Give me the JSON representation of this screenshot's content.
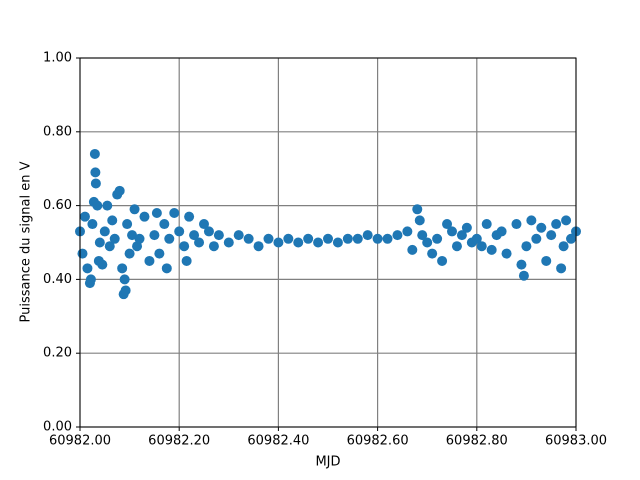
{
  "chart_data": {
    "type": "scatter",
    "xlabel": "MJD",
    "ylabel": "Puissance du signal en V",
    "xlim": [
      60982.0,
      60983.0
    ],
    "xticks": [
      {
        "value": 60982.0,
        "label": "60982.00"
      },
      {
        "value": 60982.2,
        "label": "60982.20"
      },
      {
        "value": 60982.4,
        "label": "60982.40"
      },
      {
        "value": 60982.6,
        "label": "60982.60"
      },
      {
        "value": 60982.8,
        "label": "60982.80"
      },
      {
        "value": 60983.0,
        "label": "60983.00"
      }
    ],
    "ylim": [
      0,
      1
    ],
    "yticks": [
      {
        "value": 0,
        "label": "0.00"
      },
      {
        "value": 0.2,
        "label": "0.20"
      },
      {
        "value": 0.4,
        "label": "0.40"
      },
      {
        "value": 0.6,
        "label": "0.60"
      },
      {
        "value": 0.8,
        "label": "0.80"
      },
      {
        "value": 1,
        "label": "1.00"
      }
    ],
    "grid": true,
    "color": "#1f77b4",
    "x": [
      60982.0,
      60982.005,
      60982.01,
      60982.015,
      60982.02,
      60982.022,
      60982.025,
      60982.028,
      60982.03,
      60982.031,
      60982.032,
      60982.035,
      60982.038,
      60982.04,
      60982.045,
      60982.05,
      60982.055,
      60982.06,
      60982.065,
      60982.07,
      60982.075,
      60982.08,
      60982.085,
      60982.088,
      60982.09,
      60982.092,
      60982.095,
      60982.1,
      60982.105,
      60982.11,
      60982.115,
      60982.12,
      60982.13,
      60982.14,
      60982.15,
      60982.155,
      60982.16,
      60982.17,
      60982.175,
      60982.18,
      60982.19,
      60982.2,
      60982.21,
      60982.215,
      60982.22,
      60982.23,
      60982.24,
      60982.25,
      60982.26,
      60982.27,
      60982.28,
      60982.3,
      60982.32,
      60982.34,
      60982.36,
      60982.38,
      60982.4,
      60982.42,
      60982.44,
      60982.46,
      60982.48,
      60982.5,
      60982.52,
      60982.54,
      60982.56,
      60982.58,
      60982.6,
      60982.62,
      60982.64,
      60982.66,
      60982.67,
      60982.68,
      60982.685,
      60982.69,
      60982.7,
      60982.71,
      60982.72,
      60982.73,
      60982.74,
      60982.75,
      60982.76,
      60982.77,
      60982.78,
      60982.79,
      60982.8,
      60982.81,
      60982.82,
      60982.83,
      60982.84,
      60982.85,
      60982.86,
      60982.88,
      60982.89,
      60982.895,
      60982.9,
      60982.91,
      60982.92,
      60982.93,
      60982.94,
      60982.95,
      60982.96,
      60982.97,
      60982.975,
      60982.98,
      60982.99,
      60983.0
    ],
    "values": [
      0.53,
      0.47,
      0.57,
      0.43,
      0.39,
      0.4,
      0.55,
      0.61,
      0.74,
      0.69,
      0.66,
      0.6,
      0.45,
      0.5,
      0.44,
      0.53,
      0.6,
      0.49,
      0.56,
      0.51,
      0.63,
      0.64,
      0.43,
      0.36,
      0.4,
      0.37,
      0.55,
      0.47,
      0.52,
      0.59,
      0.49,
      0.51,
      0.57,
      0.45,
      0.52,
      0.58,
      0.47,
      0.55,
      0.43,
      0.51,
      0.58,
      0.53,
      0.49,
      0.45,
      0.57,
      0.52,
      0.5,
      0.55,
      0.53,
      0.49,
      0.52,
      0.5,
      0.52,
      0.51,
      0.49,
      0.51,
      0.5,
      0.51,
      0.5,
      0.51,
      0.5,
      0.51,
      0.5,
      0.51,
      0.51,
      0.52,
      0.51,
      0.51,
      0.52,
      0.53,
      0.48,
      0.59,
      0.56,
      0.52,
      0.5,
      0.47,
      0.51,
      0.45,
      0.55,
      0.53,
      0.49,
      0.52,
      0.54,
      0.5,
      0.51,
      0.49,
      0.55,
      0.48,
      0.52,
      0.53,
      0.47,
      0.55,
      0.44,
      0.41,
      0.49,
      0.56,
      0.51,
      0.54,
      0.45,
      0.52,
      0.55,
      0.43,
      0.49,
      0.56,
      0.51,
      0.53
    ]
  }
}
